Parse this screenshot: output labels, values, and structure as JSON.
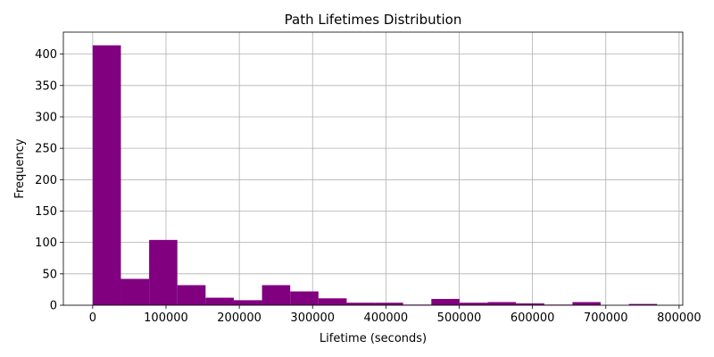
{
  "chart_data": {
    "type": "bar",
    "title": "Path Lifetimes Distribution",
    "xlabel": "Lifetime (seconds)",
    "ylabel": "Frequency",
    "bar_color": "#800080",
    "grid": true,
    "xlim": [
      -40000,
      805000
    ],
    "ylim": [
      0,
      435
    ],
    "x_ticks": [
      0,
      100000,
      200000,
      300000,
      400000,
      500000,
      600000,
      700000,
      800000
    ],
    "x_tick_labels": [
      "0",
      "100000",
      "200000",
      "300000",
      "400000",
      "500000",
      "600000",
      "700000",
      "800000"
    ],
    "y_ticks": [
      0,
      50,
      100,
      150,
      200,
      250,
      300,
      350,
      400
    ],
    "y_tick_labels": [
      "0",
      "50",
      "100",
      "150",
      "200",
      "250",
      "300",
      "350",
      "400"
    ],
    "bins": [
      {
        "x0": 0,
        "x1": 38500,
        "value": 414
      },
      {
        "x0": 38500,
        "x1": 77000,
        "value": 42
      },
      {
        "x0": 77000,
        "x1": 115500,
        "value": 104
      },
      {
        "x0": 115500,
        "x1": 154000,
        "value": 32
      },
      {
        "x0": 154000,
        "x1": 192500,
        "value": 12
      },
      {
        "x0": 192500,
        "x1": 231000,
        "value": 8
      },
      {
        "x0": 231000,
        "x1": 269500,
        "value": 32
      },
      {
        "x0": 269500,
        "x1": 308000,
        "value": 22
      },
      {
        "x0": 308000,
        "x1": 346500,
        "value": 11
      },
      {
        "x0": 346500,
        "x1": 385000,
        "value": 4
      },
      {
        "x0": 385000,
        "x1": 423500,
        "value": 4
      },
      {
        "x0": 423500,
        "x1": 462000,
        "value": 1
      },
      {
        "x0": 462000,
        "x1": 500500,
        "value": 10
      },
      {
        "x0": 500500,
        "x1": 539000,
        "value": 4
      },
      {
        "x0": 539000,
        "x1": 577500,
        "value": 5
      },
      {
        "x0": 577500,
        "x1": 616000,
        "value": 3
      },
      {
        "x0": 616000,
        "x1": 654500,
        "value": 1
      },
      {
        "x0": 654500,
        "x1": 693000,
        "value": 5
      },
      {
        "x0": 693000,
        "x1": 731500,
        "value": 0
      },
      {
        "x0": 731500,
        "x1": 770000,
        "value": 2
      }
    ]
  }
}
